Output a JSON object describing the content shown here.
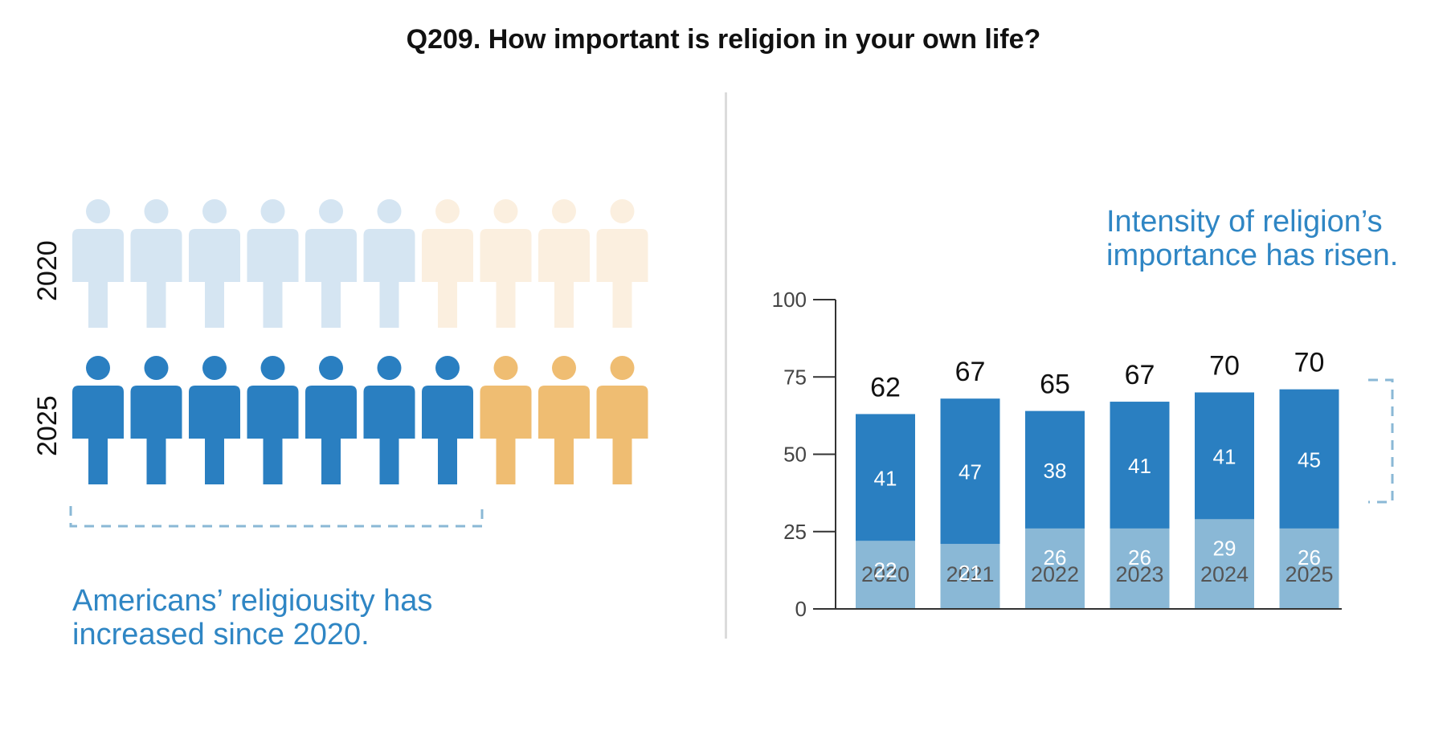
{
  "title": "Q209. How important is religion in your own life?",
  "colors": {
    "dark_blue": "#2a7fc1",
    "light_blue": "#8ab8d6",
    "pale_blue": "#d5e5f2",
    "orange": "#efbd72",
    "pale_orange": "#fbefdf",
    "caption_blue": "#2f86c4",
    "dash": "#8ab8d6"
  },
  "pictograph": {
    "rows": [
      {
        "label": "2020",
        "filled": 6,
        "total": 10,
        "fill_color": "#d5e5f2",
        "rest_color": "#fbefdf",
        "fill_icon": "person-icon-light-blue",
        "rest_icon": "person-icon-light-orange"
      },
      {
        "label": "2025",
        "filled": 7,
        "total": 10,
        "fill_color": "#2a7fc1",
        "rest_color": "#efbd72",
        "fill_icon": "person-icon-blue",
        "rest_icon": "person-icon-orange"
      }
    ],
    "caption_lines": [
      "Americans’ religiousity has",
      "increased since 2020."
    ]
  },
  "chart_caption_lines": [
    "Intensity of religion’s",
    "importance has risen."
  ],
  "chart_data": {
    "type": "bar",
    "stacked": true,
    "categories": [
      "2020",
      "2021",
      "2022",
      "2023",
      "2024",
      "2025"
    ],
    "series": [
      {
        "name": "lower segment",
        "values": [
          22,
          21,
          26,
          26,
          29,
          26
        ],
        "color": "#8ab8d6"
      },
      {
        "name": "upper segment",
        "values": [
          41,
          47,
          38,
          41,
          41,
          45
        ],
        "color": "#2a7fc1"
      }
    ],
    "totals": [
      62,
      67,
      65,
      67,
      70,
      70
    ],
    "ylim": [
      0,
      100
    ],
    "yticks": [
      0,
      25,
      50,
      75,
      100
    ],
    "title": "Intensity of religion’s importance has risen.",
    "xlabel": "",
    "ylabel": ""
  }
}
